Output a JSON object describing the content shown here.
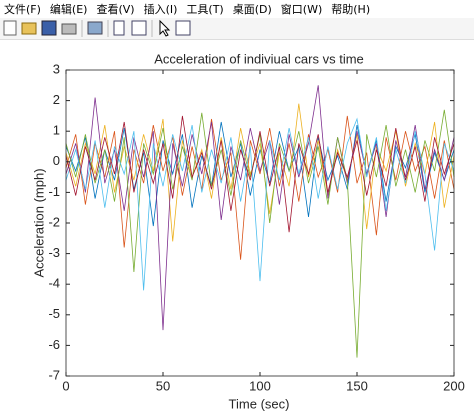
{
  "menu": [
    "文件(F)",
    "编辑(E)",
    "查看(V)",
    "插入(I)",
    "工具(T)",
    "桌面(D)",
    "窗口(W)",
    "帮助(H)"
  ],
  "chart_data": {
    "type": "line",
    "title": "Acceleration of indiviual cars vs time",
    "xlabel": "Time (sec)",
    "ylabel": "Acceleration (mph)",
    "x": [
      0,
      5,
      10,
      15,
      20,
      25,
      30,
      35,
      40,
      45,
      50,
      55,
      60,
      65,
      70,
      75,
      80,
      85,
      90,
      95,
      100,
      105,
      110,
      115,
      120,
      125,
      130,
      135,
      140,
      145,
      150,
      155,
      160,
      165,
      170,
      175,
      180,
      185,
      190,
      195,
      200
    ],
    "series": [
      {
        "color": "#0072BD",
        "values": [
          0.5,
          -0.3,
          0.8,
          -1.2,
          0.4,
          -0.6,
          1.1,
          -0.9,
          0.3,
          -2.1,
          0.7,
          -0.4,
          0.9,
          -1.5,
          0.2,
          -0.8,
          1.3,
          -0.5,
          0.6,
          -1.1,
          0.4,
          -0.7,
          1.0,
          -0.3,
          0.5,
          -1.8,
          0.8,
          -0.6,
          0.2,
          -0.9,
          1.2,
          -0.4,
          0.7,
          -1.3,
          0.5,
          -0.2,
          0.9,
          -1.0,
          0.3,
          -0.6,
          0.4
        ]
      },
      {
        "color": "#D95319",
        "values": [
          -0.2,
          0.9,
          -1.4,
          0.6,
          -0.5,
          1.0,
          -2.8,
          0.4,
          -0.7,
          1.2,
          -0.3,
          0.8,
          -1.1,
          0.5,
          -0.9,
          1.4,
          -0.6,
          0.3,
          -3.2,
          0.7,
          -0.4,
          1.1,
          -0.8,
          0.6,
          -1.3,
          0.9,
          -0.5,
          0.4,
          -1.0,
          1.5,
          -0.7,
          0.3,
          -2.4,
          0.8,
          -0.6,
          1.0,
          -0.3,
          0.5,
          -1.2,
          0.7,
          -0.9
        ]
      },
      {
        "color": "#EDB120",
        "values": [
          0.3,
          -0.8,
          0.6,
          -0.4,
          1.2,
          -1.0,
          0.5,
          -0.6,
          0.9,
          -0.3,
          1.4,
          -2.6,
          0.7,
          -0.5,
          0.4,
          -1.2,
          0.8,
          -0.9,
          1.1,
          -0.4,
          0.6,
          -1.7,
          0.3,
          -0.8,
          1.9,
          -0.5,
          0.7,
          -1.1,
          0.4,
          -0.6,
          0.9,
          -2.2,
          0.5,
          -0.3,
          1.0,
          -0.8,
          0.6,
          -0.4,
          1.3,
          -1.5,
          0.2
        ]
      },
      {
        "color": "#7E2F8E",
        "values": [
          -0.4,
          0.6,
          -1.0,
          2.1,
          -0.7,
          0.4,
          -1.6,
          0.8,
          -0.5,
          1.0,
          -5.5,
          0.6,
          -0.8,
          0.9,
          -0.4,
          1.3,
          -1.9,
          0.5,
          -0.6,
          1.1,
          -0.3,
          0.7,
          -1.4,
          0.9,
          -0.5,
          0.6,
          2.5,
          -1.2,
          0.8,
          -0.7,
          1.0,
          -0.4,
          0.6,
          -1.8,
          0.7,
          -0.5,
          1.2,
          -0.9,
          0.4,
          -0.6,
          0.8
        ]
      },
      {
        "color": "#77AC30",
        "values": [
          0.6,
          -0.5,
          0.9,
          -0.7,
          0.4,
          -1.3,
          0.8,
          -3.6,
          0.6,
          -0.4,
          1.1,
          -0.9,
          0.5,
          -0.6,
          1.6,
          -0.8,
          0.4,
          -1.1,
          0.7,
          -0.5,
          0.9,
          -2.0,
          0.6,
          -0.3,
          1.0,
          -0.7,
          0.5,
          -1.4,
          0.8,
          -0.6,
          -6.4,
          0.9,
          -0.5,
          1.2,
          -0.8,
          0.4,
          -1.0,
          0.7,
          -0.3,
          1.7,
          -0.5
        ]
      },
      {
        "color": "#4DBEEE",
        "values": [
          -0.6,
          0.4,
          -0.9,
          0.7,
          -1.5,
          0.5,
          -0.4,
          1.0,
          -4.2,
          0.6,
          -0.8,
          0.9,
          -0.3,
          1.2,
          -1.0,
          0.4,
          -0.7,
          0.8,
          -1.3,
          0.5,
          -3.9,
          0.7,
          -0.6,
          1.1,
          -0.4,
          0.8,
          -1.2,
          0.5,
          -0.9,
          0.6,
          1.4,
          -0.5,
          0.8,
          -1.6,
          0.4,
          -0.7,
          1.0,
          -0.4,
          -2.9,
          0.6,
          -0.3
        ]
      },
      {
        "color": "#A2142F",
        "values": [
          0.2,
          -1.1,
          0.5,
          -0.6,
          0.8,
          -0.4,
          1.3,
          -1.0,
          0.4,
          -0.7,
          0.6,
          -1.2,
          1.5,
          -0.5,
          0.3,
          -0.9,
          0.7,
          -1.6,
          0.4,
          -0.6,
          1.0,
          -0.8,
          0.5,
          -2.3,
          0.6,
          -0.4,
          0.9,
          -1.0,
          0.3,
          -0.5,
          0.7,
          -1.1,
          0.4,
          -0.8,
          1.1,
          -0.6,
          0.5,
          -1.3,
          0.8,
          -0.4,
          0.6
        ]
      }
    ],
    "xlim": [
      0,
      200
    ],
    "xticks": [
      0,
      50,
      100,
      150,
      200
    ],
    "ylim": [
      -7,
      3
    ],
    "yticks": [
      -7,
      -6,
      -5,
      -4,
      -3,
      -2,
      -1,
      0,
      1,
      2,
      3
    ],
    "grid": false
  }
}
